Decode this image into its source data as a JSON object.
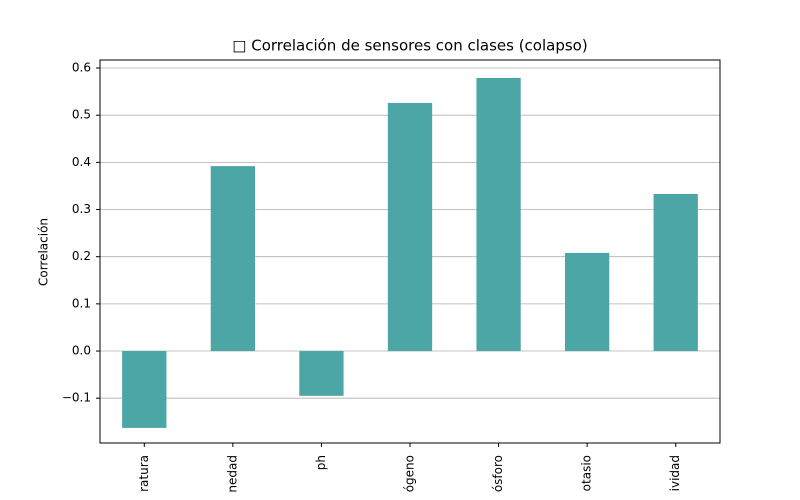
{
  "chart_data": {
    "type": "bar",
    "title": "□ Correlación de sensores con clases (colapso)",
    "ylabel": "Correlación",
    "categories": [
      "ratura",
      "nedad",
      "ph",
      "ógeno",
      "ósforo",
      "otasio",
      "ividad"
    ],
    "values": [
      -0.163,
      0.392,
      -0.095,
      0.526,
      0.579,
      0.208,
      0.333
    ],
    "color": "#4da6a6",
    "ylim": [
      -0.195,
      0.617
    ],
    "yticks": [
      {
        "value": -0.1,
        "label": "−0.1"
      },
      {
        "value": 0,
        "label": "0.0"
      },
      0.1,
      0.2,
      0.3,
      0.4,
      0.5,
      0.6
    ],
    "grid": true
  }
}
